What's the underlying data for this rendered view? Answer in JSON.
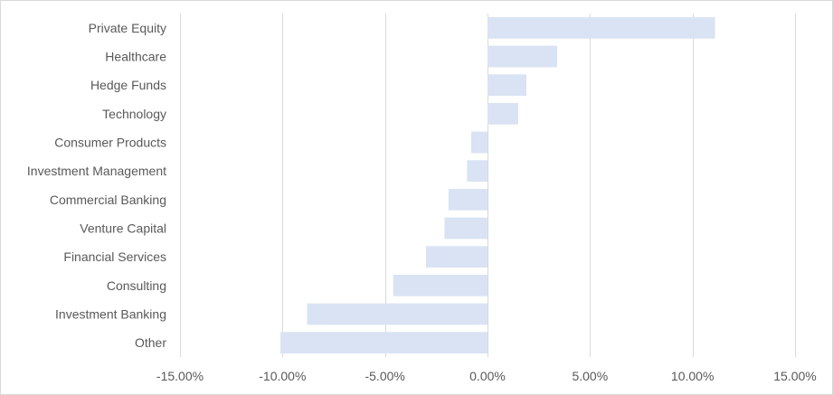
{
  "chart_data": {
    "type": "bar",
    "orientation": "horizontal",
    "title": "",
    "xlabel": "",
    "ylabel": "",
    "categories": [
      "Private Equity",
      "Healthcare",
      "Hedge Funds",
      "Technology",
      "Consumer Products",
      "Investment Management",
      "Commercial Banking",
      "Venture Capital",
      "Financial Services",
      "Consulting",
      "Investment Banking",
      "Other"
    ],
    "values": [
      11.1,
      3.4,
      1.9,
      1.5,
      -0.8,
      -1.0,
      -1.9,
      -2.1,
      -3.0,
      -4.6,
      -8.8,
      -10.1
    ],
    "xlim": [
      -15,
      15
    ],
    "xticks": [
      -15,
      -10,
      -5,
      0,
      5,
      10,
      15
    ],
    "xtick_labels": [
      "-15.00%",
      "-10.00%",
      "-5.00%",
      "0.00%",
      "5.00%",
      "10.00%",
      "15.00%"
    ],
    "grid": "vertical",
    "legend": "none",
    "bar_color": "#dae3f3",
    "grid_color": "#d9d9d9"
  }
}
